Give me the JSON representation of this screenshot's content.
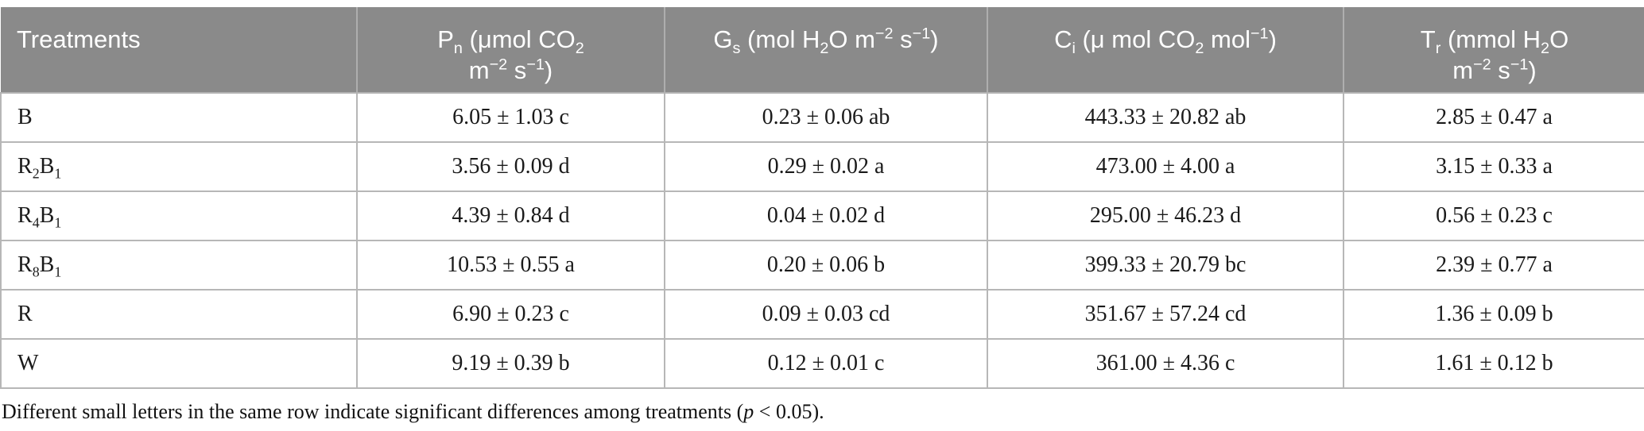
{
  "colors": {
    "header_bg": "#8a8a8a",
    "header_text": "#ffffff",
    "grid_border": "#b7b7b7",
    "body_text": "#1a1a1a",
    "page_bg": "#ffffff"
  },
  "table": {
    "columns": [
      {
        "id": "treatments",
        "label_html": "Treatments"
      },
      {
        "id": "pn",
        "label_html": "P<sub>n</sub> (μmol CO<sub>2</sub><br>m<sup>−2</sup> s<sup>−1</sup>)"
      },
      {
        "id": "gs",
        "label_html": "G<sub>s</sub> (mol H<sub>2</sub>O m<sup>−2</sup> s<sup>−1</sup>)"
      },
      {
        "id": "ci",
        "label_html": "C<sub>i</sub> (μ mol CO<sub>2</sub> mol<sup>−1</sup>)"
      },
      {
        "id": "tr",
        "label_html": "T<sub>r</sub> (mmol H<sub>2</sub>O<br>m<sup>−2</sup> s<sup>−1</sup>)"
      }
    ],
    "rows": [
      {
        "treatment_html": "B",
        "cells": [
          "6.05 ± 1.03 c",
          "0.23 ± 0.06 ab",
          "443.33 ± 20.82 ab",
          "2.85 ± 0.47 a"
        ]
      },
      {
        "treatment_html": "R<sub>2</sub>B<sub>1</sub>",
        "cells": [
          "3.56 ± 0.09 d",
          "0.29 ± 0.02 a",
          "473.00 ± 4.00 a",
          "3.15 ± 0.33 a"
        ]
      },
      {
        "treatment_html": "R<sub>4</sub>B<sub>1</sub>",
        "cells": [
          "4.39 ± 0.84 d",
          "0.04 ± 0.02 d",
          "295.00 ± 46.23 d",
          "0.56 ± 0.23 c"
        ]
      },
      {
        "treatment_html": "R<sub>8</sub>B<sub>1</sub>",
        "cells": [
          "10.53 ± 0.55 a",
          "0.20 ± 0.06 b",
          "399.33 ± 20.79 bc",
          "2.39 ± 0.77 a"
        ]
      },
      {
        "treatment_html": "R",
        "cells": [
          "6.90 ± 0.23 c",
          "0.09 ± 0.03 cd",
          "351.67 ± 57.24 cd",
          "1.36 ± 0.09 b"
        ]
      },
      {
        "treatment_html": "W",
        "cells": [
          "9.19 ± 0.39 b",
          "0.12 ± 0.01 c",
          "361.00 ± 4.36 c",
          "1.61 ± 0.12 b"
        ]
      }
    ],
    "footnote_html": "Different small letters in the same row indicate significant differences among treatments (<i>p</i> &lt; 0.05)."
  }
}
